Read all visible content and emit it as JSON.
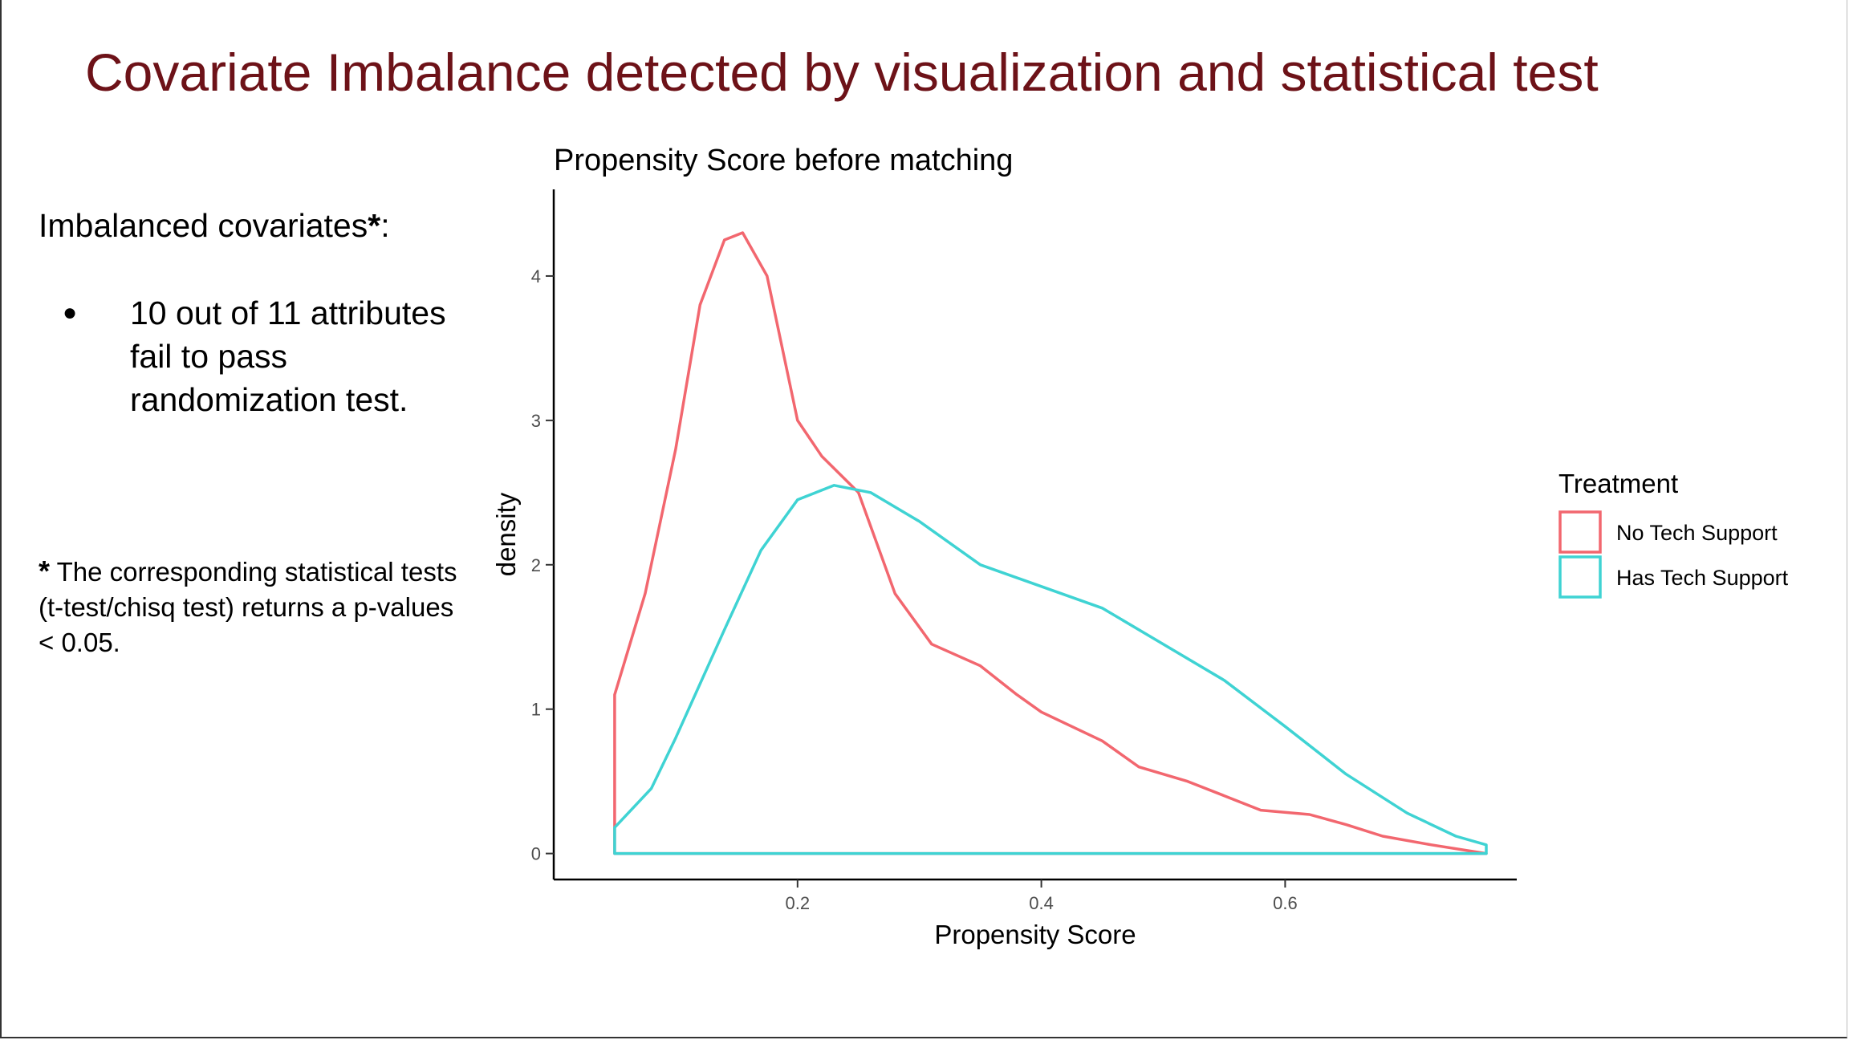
{
  "slide": {
    "title": "Covariate Imbalance detected by visualization and statistical test",
    "heading": "Imbalanced covariates",
    "heading_star": "*",
    "heading_colon": ":",
    "bullet_symbol": "●",
    "bullet_text": "10 out of 11 attributes fail to pass randomization test.",
    "footnote_star": "*",
    "footnote_text": " The corresponding statistical tests (t-test/chisq test) returns a p-values < 0.05.",
    "title_color": "#6d1218"
  },
  "chart_data": {
    "type": "area",
    "title": "Propensity Score before matching",
    "xlabel": "Propensity Score",
    "ylabel": "density",
    "xlim": [
      0.0,
      0.79
    ],
    "ylim": [
      -0.18,
      4.6
    ],
    "xticks": [
      0.2,
      0.4,
      0.6
    ],
    "xtick_labels": [
      "0.2",
      "0.4",
      "0.6"
    ],
    "yticks": [
      0,
      1,
      2,
      3,
      4
    ],
    "ytick_labels": [
      "0",
      "1",
      "2",
      "3",
      "4"
    ],
    "grid": false,
    "legend": {
      "title": "Treatment",
      "position": "right"
    },
    "series": [
      {
        "name": "No Tech Support",
        "color": "#f2676f",
        "x": [
          0.05,
          0.05,
          0.075,
          0.1,
          0.12,
          0.14,
          0.155,
          0.175,
          0.2,
          0.22,
          0.25,
          0.28,
          0.31,
          0.35,
          0.38,
          0.4,
          0.45,
          0.48,
          0.52,
          0.55,
          0.58,
          0.62,
          0.65,
          0.68,
          0.72,
          0.765
        ],
        "values": [
          0.0,
          1.1,
          1.8,
          2.8,
          3.8,
          4.25,
          4.3,
          4.0,
          3.0,
          2.75,
          2.5,
          1.8,
          1.45,
          1.3,
          1.1,
          0.98,
          0.78,
          0.6,
          0.5,
          0.4,
          0.3,
          0.27,
          0.2,
          0.12,
          0.06,
          0.0
        ]
      },
      {
        "name": "Has Tech Support",
        "color": "#3fd3d3",
        "x": [
          0.05,
          0.05,
          0.08,
          0.1,
          0.14,
          0.17,
          0.2,
          0.23,
          0.26,
          0.3,
          0.35,
          0.4,
          0.45,
          0.5,
          0.55,
          0.6,
          0.65,
          0.7,
          0.74,
          0.765,
          0.765
        ],
        "values": [
          0.0,
          0.18,
          0.45,
          0.8,
          1.55,
          2.1,
          2.45,
          2.55,
          2.5,
          2.3,
          2.0,
          1.85,
          1.7,
          1.45,
          1.2,
          0.88,
          0.55,
          0.28,
          0.12,
          0.06,
          0.0
        ]
      }
    ]
  }
}
